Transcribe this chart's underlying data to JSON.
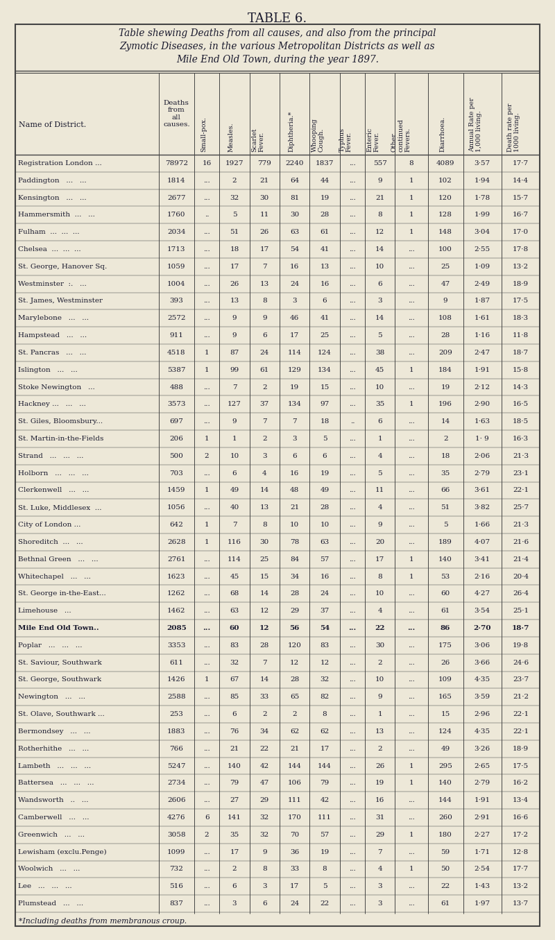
{
  "title": "TABLE 6.",
  "subtitle_lines": [
    "Table shewing Deaths from all causes, and also from the principal",
    "Zymotic Diseases, in the various Metropolitan Districts as well as",
    "Mile End Old Town, during the year 1897."
  ],
  "footnote": "*Including deaths from membranous croup.",
  "col_headers": [
    "Name of District.",
    "Deaths\nfrom\nall\ncauses.",
    "Small-pox.",
    "Measles.",
    "Scarlet\nFever.",
    "Diphtheria.*",
    "Whooping\nCough.",
    "Typhus\nFever.",
    "Enteric\nFever.",
    "Other\ncontinued\nFevers.",
    "Diarrhoea.",
    "Annual Rate per\n1,000 living.",
    "Death rate per\n1000 living."
  ],
  "rows": [
    [
      "Registration London ...",
      "78972",
      "16",
      "1927",
      "779",
      "2240",
      "1837",
      "...",
      "557",
      "8",
      "4089",
      "3·57",
      "17·7"
    ],
    [
      "Paddington   ...   ...",
      "1814",
      "...",
      "2",
      "21",
      "64",
      "44",
      "...",
      "9",
      "1",
      "102",
      "1·94",
      "14·4"
    ],
    [
      "Kensington   ...   ...",
      "2677",
      "...",
      "32",
      "30",
      "81",
      "19",
      "...",
      "21",
      "1",
      "120",
      "1·78",
      "15·7"
    ],
    [
      "Hammersmith  ...   ...",
      "1760",
      "..",
      "5",
      "11",
      "30",
      "28",
      "...",
      "8",
      "1",
      "128",
      "1·99",
      "16·7"
    ],
    [
      "Fulham  ...  ...  ...",
      "2034",
      "...",
      "51",
      "26",
      "63",
      "61",
      "...",
      "12",
      "1",
      "148",
      "3·04",
      "17·0"
    ],
    [
      "Chelsea  ...  ...  ...",
      "1713",
      "...",
      "18",
      "17",
      "54",
      "41",
      "...",
      "14",
      "...",
      "100",
      "2·55",
      "17·8"
    ],
    [
      "St. George, Hanover Sq.",
      "1059",
      "...",
      "17",
      "7",
      "16",
      "13",
      "...",
      "10",
      "...",
      "25",
      "1·09",
      "13·2"
    ],
    [
      "Westminster  :.   ...",
      "1004",
      "...",
      "26",
      "13",
      "24",
      "16",
      "...",
      "6",
      "...",
      "47",
      "2·49",
      "18·9"
    ],
    [
      "St. James, Westminster",
      "393",
      "...",
      "13",
      "8",
      "3",
      "6",
      "...",
      "3",
      "...",
      "9",
      "1·87",
      "17·5"
    ],
    [
      "Marylebone   ...   ...",
      "2572",
      "...",
      "9",
      "9",
      "46",
      "41",
      "...",
      "14",
      "...",
      "108",
      "1·61",
      "18·3"
    ],
    [
      "Hampstead   ...   ...",
      "911",
      "...",
      "9",
      "6",
      "17",
      "25",
      "...",
      "5",
      "...",
      "28",
      "1·16",
      "11·8"
    ],
    [
      "St. Pancras   ...   ...",
      "4518",
      "1",
      "87",
      "24",
      "114",
      "124",
      "...",
      "38",
      "...",
      "209",
      "2·47",
      "18·7"
    ],
    [
      "Islington   ...   ...",
      "5387",
      "1",
      "99",
      "61",
      "129",
      "134",
      "...",
      "45",
      "1",
      "184",
      "1·91",
      "15·8"
    ],
    [
      "Stoke Newington   ...",
      "488",
      "...",
      "7",
      "2",
      "19",
      "15",
      "...",
      "10",
      "...",
      "19",
      "2·12",
      "14·3"
    ],
    [
      "Hackney ...   ...   ...",
      "3573",
      "...",
      "127",
      "37",
      "134",
      "97",
      "...",
      "35",
      "1",
      "196",
      "2·90",
      "16·5"
    ],
    [
      "St. Giles, Bloomsbury...",
      "697",
      "...",
      "9",
      "7",
      "7",
      "18",
      "..",
      "6",
      "...",
      "14",
      "1·63",
      "18·5"
    ],
    [
      "St. Martin-in-the-Fields",
      "206",
      "1",
      "1",
      "2",
      "3",
      "5",
      "...",
      "1",
      "...",
      "2",
      "1· 9",
      "16·3"
    ],
    [
      "Strand   ...   ...   ...",
      "500",
      "2",
      "10",
      "3",
      "6",
      "6",
      "...",
      "4",
      "...",
      "18",
      "2·06",
      "21·3"
    ],
    [
      "Holborn   ...   ...   ...",
      "703",
      "...",
      "6",
      "4",
      "16",
      "19",
      "...",
      "5",
      "...",
      "35",
      "2·79",
      "23·1"
    ],
    [
      "Clerkenwell   ...   ...",
      "1459",
      "1",
      "49",
      "14",
      "48",
      "49",
      "...",
      "11",
      "...",
      "66",
      "3·61",
      "22·1"
    ],
    [
      "St. Luke, Middlesex  ...",
      "1056",
      "...",
      "40",
      "13",
      "21",
      "28",
      "...",
      "4",
      "...",
      "51",
      "3·82",
      "25·7"
    ],
    [
      "City of London ...",
      "642",
      "1",
      "7",
      "8",
      "10",
      "10",
      "...",
      "9",
      "...",
      "5",
      "1·66",
      "21·3"
    ],
    [
      "Shoreditch  ...   ...",
      "2628",
      "1",
      "116",
      "30",
      "78",
      "63",
      "...",
      "20",
      "...",
      "189",
      "4·07",
      "21·6"
    ],
    [
      "Bethnal Green   ...   ...",
      "2761",
      "...",
      "114",
      "25",
      "84",
      "57",
      "...",
      "17",
      "1",
      "140",
      "3·41",
      "21·4"
    ],
    [
      "Whitechapel   ...   ...",
      "1623",
      "...",
      "45",
      "15",
      "34",
      "16",
      "...",
      "8",
      "1",
      "53",
      "2·16",
      "20·4"
    ],
    [
      "St. George in-the-East...",
      "1262",
      "...",
      "68",
      "14",
      "28",
      "24",
      "...",
      "10",
      "...",
      "60",
      "4·27",
      "26·4"
    ],
    [
      "Limehouse   ...",
      "1462",
      "...",
      "63",
      "12",
      "29",
      "37",
      "...",
      "4",
      "...",
      "61",
      "3·54",
      "25·1"
    ],
    [
      "Mile End Old Town..",
      "2085",
      "...",
      "60",
      "12",
      "56",
      "54",
      "...",
      "22",
      "...",
      "86",
      "2·70",
      "18·7"
    ],
    [
      "Poplar   ...   ...   ...",
      "3353",
      "...",
      "83",
      "28",
      "120",
      "83",
      "...",
      "30",
      "...",
      "175",
      "3·06",
      "19·8"
    ],
    [
      "St. Saviour, Southwark",
      "611",
      "...",
      "32",
      "7",
      "12",
      "12",
      "...",
      "2",
      "...",
      "26",
      "3·66",
      "24·6"
    ],
    [
      "St. George, Southwark",
      "1426",
      "1",
      "67",
      "14",
      "28",
      "32",
      "...",
      "10",
      "...",
      "109",
      "4·35",
      "23·7"
    ],
    [
      "Newington   ...   ...",
      "2588",
      "...",
      "85",
      "33",
      "65",
      "82",
      "...",
      "9",
      "...",
      "165",
      "3·59",
      "21·2"
    ],
    [
      "St. Olave, Southwark ...",
      "253",
      "...",
      "6",
      "2",
      "2",
      "8",
      "...",
      "1",
      "...",
      "15",
      "2·96",
      "22·1"
    ],
    [
      "Bermondsey   ...   ...",
      "1883",
      "...",
      "76",
      "34",
      "62",
      "62",
      "...",
      "13",
      "...",
      "124",
      "4·35",
      "22·1"
    ],
    [
      "Rotherhithe   ...   ...",
      "766",
      "...",
      "21",
      "22",
      "21",
      "17",
      "...",
      "2",
      "...",
      "49",
      "3·26",
      "18·9"
    ],
    [
      "Lambeth   ...   ...   ...",
      "5247",
      "...",
      "140",
      "42",
      "144",
      "144",
      "...",
      "26",
      "1",
      "295",
      "2·65",
      "17·5"
    ],
    [
      "Battersea   ...   ...   ...",
      "2734",
      "...",
      "79",
      "47",
      "106",
      "79",
      "...",
      "19",
      "1",
      "140",
      "2·79",
      "16·2"
    ],
    [
      "Wandsworth   ..   ...",
      "2606",
      "...",
      "27",
      "29",
      "111",
      "42",
      "...",
      "16",
      "...",
      "144",
      "1·91",
      "13·4"
    ],
    [
      "Camberwell   ...   ...",
      "4276",
      "6",
      "141",
      "32",
      "170",
      "111",
      "...",
      "31",
      "...",
      "260",
      "2·91",
      "16·6"
    ],
    [
      "Greenwich   ...   ...",
      "3058",
      "2",
      "35",
      "32",
      "70",
      "57",
      "...",
      "29",
      "1",
      "180",
      "2·27",
      "17·2"
    ],
    [
      "Lewisham (exclu.Penge)",
      "1099",
      "...",
      "17",
      "9",
      "36",
      "19",
      "...",
      "7",
      "...",
      "59",
      "1·71",
      "12·8"
    ],
    [
      "Woolwich   ...   ...",
      "732",
      "...",
      "2",
      "8",
      "33",
      "8",
      "...",
      "4",
      "1",
      "50",
      "2·54",
      "17·7"
    ],
    [
      "Lee   ...   ...   ...",
      "516",
      "...",
      "6",
      "3",
      "17",
      "5",
      "...",
      "3",
      "...",
      "22",
      "1·43",
      "13·2"
    ],
    [
      "Plumstead   ...   ...",
      "837",
      "...",
      "3",
      "6",
      "24",
      "22",
      "...",
      "3",
      "...",
      "61",
      "1·97",
      "13·7"
    ]
  ],
  "bold_row_index": 27,
  "bg_color": "#ede8d8",
  "text_color": "#1a1a2e",
  "line_color": "#444444"
}
